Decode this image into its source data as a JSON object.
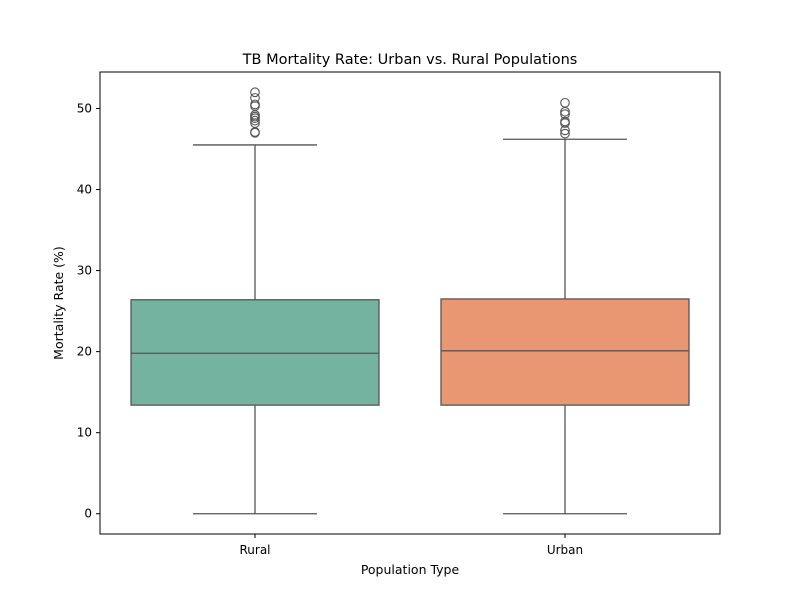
{
  "chart_data": {
    "type": "box",
    "title": "TB Mortality Rate: Urban vs. Rural Populations",
    "xlabel": "Population Type",
    "ylabel": "Mortality Rate (%)",
    "ylim": [
      -2.5,
      54.5
    ],
    "yticks": [
      0,
      10,
      20,
      30,
      40,
      50
    ],
    "grid": false,
    "categories": [
      "Rural",
      "Urban"
    ],
    "boxes": [
      {
        "name": "Rural",
        "color": "#73B3A0",
        "whisker_low": 0,
        "q1": 13.4,
        "median": 19.8,
        "q3": 26.4,
        "whisker_high": 45.5,
        "outliers": [
          47.0,
          47.1,
          48.2,
          48.5,
          48.8,
          49.0,
          49.2,
          50.3,
          50.5,
          51.3,
          52.0
        ]
      },
      {
        "name": "Urban",
        "color": "#E99673",
        "whisker_low": 0,
        "q1": 13.4,
        "median": 20.1,
        "q3": 26.5,
        "whisker_high": 46.2,
        "outliers": [
          46.9,
          47.3,
          48.2,
          48.4,
          49.3,
          49.6,
          50.7
        ]
      }
    ]
  }
}
